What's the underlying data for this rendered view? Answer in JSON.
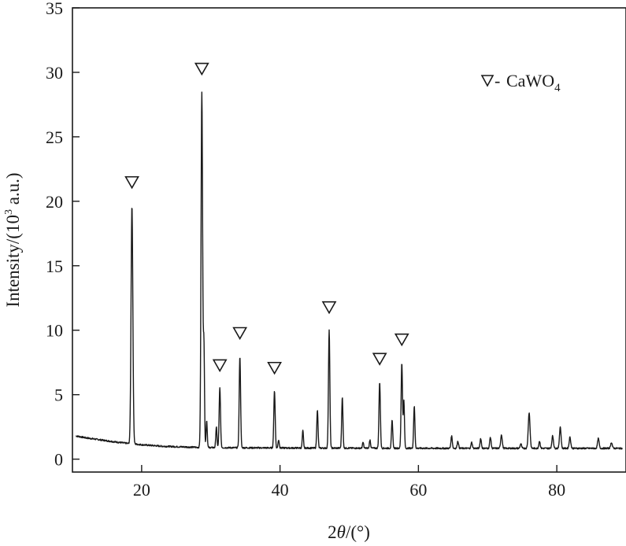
{
  "chart_data": {
    "type": "line",
    "xlabel_pre": "2",
    "xlabel_theta": "θ",
    "xlabel_post": "/(°)",
    "ylabel_pre": "Intensity/(10",
    "ylabel_sup": "3",
    "ylabel_post": " a.u.)",
    "xlim": [
      10,
      90
    ],
    "ylim": [
      -1,
      35
    ],
    "x_ticks": [
      20,
      40,
      60,
      80
    ],
    "y_ticks": [
      0,
      5,
      10,
      15,
      20,
      25,
      30,
      35
    ],
    "legend": {
      "position": "top-right",
      "marker_symbol": "∇",
      "dash": "-",
      "label": "CaWO",
      "label_sub": "4"
    },
    "series": [
      {
        "color": "#1a1a1a",
        "baseline": [
          [
            10.5,
            1.8
          ],
          [
            12,
            1.65
          ],
          [
            14,
            1.5
          ],
          [
            16,
            1.35
          ],
          [
            18,
            1.22
          ],
          [
            20,
            1.12
          ],
          [
            23,
            1.0
          ],
          [
            26,
            0.95
          ],
          [
            29,
            0.9
          ],
          [
            35,
            0.88
          ],
          [
            45,
            0.86
          ],
          [
            55,
            0.85
          ],
          [
            65,
            0.84
          ],
          [
            75,
            0.84
          ],
          [
            89.5,
            0.84
          ]
        ],
        "peaks": [
          {
            "x": 18.6,
            "y": 19.7,
            "w": 0.18
          },
          {
            "x": 28.7,
            "y": 28.5,
            "w": 0.16
          },
          {
            "x": 29.0,
            "y": 8.8,
            "w": 0.12
          },
          {
            "x": 29.4,
            "y": 3.0,
            "w": 0.12
          },
          {
            "x": 30.8,
            "y": 2.5,
            "w": 0.12
          },
          {
            "x": 31.3,
            "y": 5.5,
            "w": 0.14
          },
          {
            "x": 34.2,
            "y": 8.0,
            "w": 0.14
          },
          {
            "x": 39.2,
            "y": 5.3,
            "w": 0.14
          },
          {
            "x": 39.8,
            "y": 1.5,
            "w": 0.12
          },
          {
            "x": 43.3,
            "y": 2.2,
            "w": 0.12
          },
          {
            "x": 45.4,
            "y": 3.8,
            "w": 0.13
          },
          {
            "x": 47.1,
            "y": 10.0,
            "w": 0.14
          },
          {
            "x": 49.0,
            "y": 4.8,
            "w": 0.13
          },
          {
            "x": 52.0,
            "y": 1.3,
            "w": 0.12
          },
          {
            "x": 53.0,
            "y": 1.5,
            "w": 0.12
          },
          {
            "x": 54.4,
            "y": 6.0,
            "w": 0.14
          },
          {
            "x": 56.2,
            "y": 3.0,
            "w": 0.13
          },
          {
            "x": 57.6,
            "y": 7.5,
            "w": 0.14
          },
          {
            "x": 57.9,
            "y": 4.5,
            "w": 0.12
          },
          {
            "x": 59.4,
            "y": 4.1,
            "w": 0.13
          },
          {
            "x": 64.8,
            "y": 1.8,
            "w": 0.14
          },
          {
            "x": 65.7,
            "y": 1.4,
            "w": 0.14
          },
          {
            "x": 67.7,
            "y": 1.3,
            "w": 0.14
          },
          {
            "x": 69.0,
            "y": 1.6,
            "w": 0.14
          },
          {
            "x": 70.4,
            "y": 1.7,
            "w": 0.14
          },
          {
            "x": 72.0,
            "y": 1.9,
            "w": 0.16
          },
          {
            "x": 74.8,
            "y": 1.2,
            "w": 0.14
          },
          {
            "x": 76.0,
            "y": 3.6,
            "w": 0.18
          },
          {
            "x": 77.5,
            "y": 1.4,
            "w": 0.14
          },
          {
            "x": 79.4,
            "y": 1.8,
            "w": 0.16
          },
          {
            "x": 80.5,
            "y": 2.5,
            "w": 0.16
          },
          {
            "x": 81.9,
            "y": 1.7,
            "w": 0.16
          },
          {
            "x": 86.0,
            "y": 1.6,
            "w": 0.16
          },
          {
            "x": 87.9,
            "y": 1.3,
            "w": 0.16
          }
        ]
      }
    ],
    "annotations": [
      {
        "symbol": "∇",
        "x": 18.6,
        "y": 19.7
      },
      {
        "symbol": "∇",
        "x": 28.7,
        "y": 28.5
      },
      {
        "symbol": "∇",
        "x": 31.3,
        "y": 5.5
      },
      {
        "symbol": "∇",
        "x": 34.2,
        "y": 8.0
      },
      {
        "symbol": "∇",
        "x": 39.2,
        "y": 5.3
      },
      {
        "symbol": "∇",
        "x": 47.1,
        "y": 10.0
      },
      {
        "symbol": "∇",
        "x": 54.4,
        "y": 6.0
      },
      {
        "symbol": "∇",
        "x": 57.6,
        "y": 7.5
      }
    ],
    "grid": false
  }
}
